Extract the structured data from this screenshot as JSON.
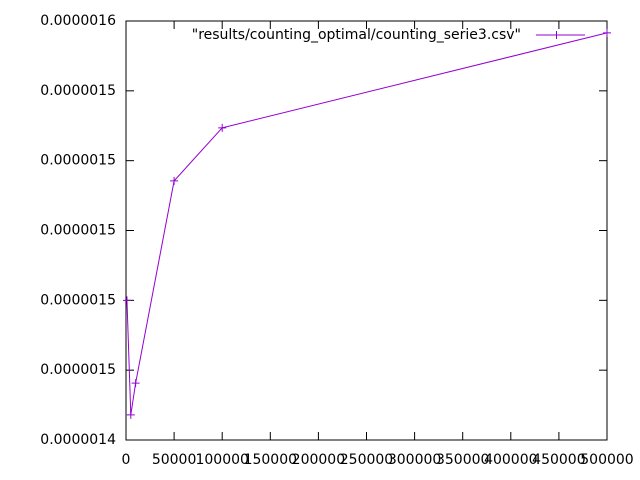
{
  "chart_data": {
    "type": "line",
    "x": [
      1000,
      5000,
      10000,
      50000,
      100000,
      500000
    ],
    "series": [
      {
        "name": "\"results/counting_optimal/counting_serie3.csv\"",
        "color": "#9400d3",
        "values": [
          1.48e-06,
          1.4472e-06,
          1.4563e-06,
          1.5142e-06,
          1.5294e-06,
          1.5566e-06
        ]
      }
    ],
    "xlim": [
      0,
      500000
    ],
    "xticks": [
      0,
      50000,
      100000,
      150000,
      200000,
      250000,
      300000,
      350000,
      400000,
      450000,
      500000
    ],
    "ylim": [
      1.44e-06,
      1.56e-06
    ],
    "yticks": [
      {
        "value": 1.44e-06,
        "label": "0.0000014"
      },
      {
        "value": 1.46e-06,
        "label": "0.0000015"
      },
      {
        "value": 1.48e-06,
        "label": "0.0000015"
      },
      {
        "value": 1.5e-06,
        "label": "0.0000015"
      },
      {
        "value": 1.52e-06,
        "label": "0.0000015"
      },
      {
        "value": 1.54e-06,
        "label": "0.0000015"
      },
      {
        "value": 1.56e-06,
        "label": "0.0000016"
      }
    ],
    "legend": "top-right"
  }
}
